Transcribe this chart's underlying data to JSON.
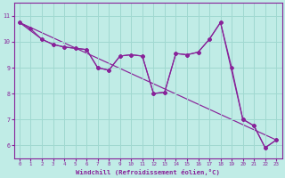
{
  "background_color": "#c0ece6",
  "grid_color": "#a0d8d0",
  "line_color": "#882299",
  "xlabel": "Windchill (Refroidissement éolien,°C)",
  "ylabel_ticks": [
    6,
    7,
    8,
    9,
    10,
    11
  ],
  "xticks": [
    0,
    1,
    2,
    3,
    4,
    5,
    6,
    7,
    8,
    9,
    10,
    11,
    12,
    13,
    14,
    15,
    16,
    17,
    18,
    19,
    20,
    21,
    22,
    23
  ],
  "xlim": [
    -0.5,
    23.5
  ],
  "ylim": [
    5.5,
    11.5
  ],
  "line1_x": [
    0,
    1,
    2,
    3,
    4,
    5,
    6,
    7,
    8,
    9,
    10,
    11,
    12,
    13,
    14,
    15,
    16,
    17,
    18,
    19,
    20,
    21,
    22,
    23
  ],
  "line1_y": [
    10.75,
    10.5,
    10.1,
    9.9,
    9.8,
    9.75,
    9.7,
    9.0,
    8.9,
    9.45,
    9.5,
    9.45,
    8.0,
    8.05,
    9.55,
    9.5,
    9.6,
    10.1,
    10.75,
    9.0,
    7.0,
    6.75,
    5.9,
    6.2
  ],
  "line2_x": [
    0,
    2,
    3,
    4,
    5,
    6,
    7,
    8,
    9,
    10,
    11,
    12,
    13,
    14,
    15,
    16,
    17,
    18,
    20,
    21,
    22,
    23
  ],
  "line2_y": [
    10.75,
    10.1,
    9.9,
    9.8,
    9.75,
    9.7,
    9.0,
    8.9,
    9.45,
    9.5,
    9.45,
    8.0,
    8.05,
    9.55,
    9.5,
    9.6,
    10.1,
    10.75,
    7.0,
    6.75,
    5.9,
    6.2
  ],
  "line3_x": [
    0,
    23
  ],
  "line3_y": [
    10.75,
    6.2
  ],
  "spine_color": "#882299",
  "tick_color": "#882299"
}
